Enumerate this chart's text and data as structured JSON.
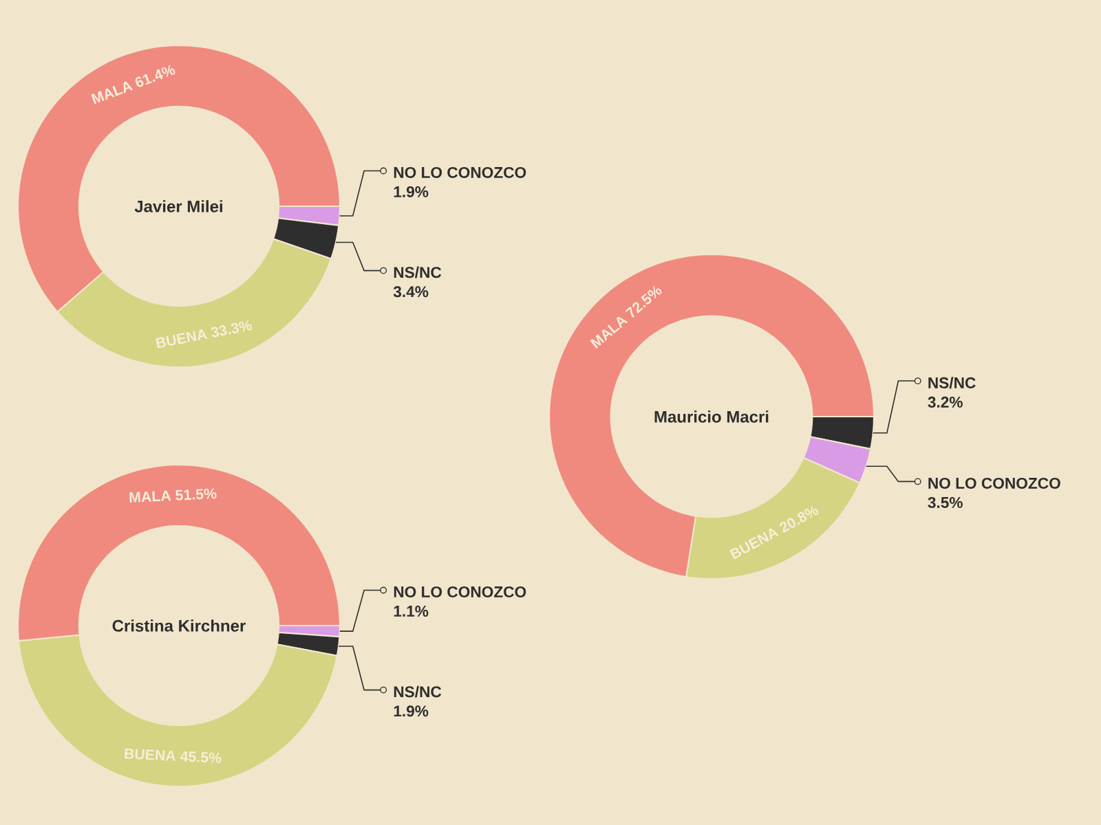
{
  "chart_data": [
    {
      "type": "donut",
      "title": "Javier Milei",
      "categories": [
        "NO LO CONOZCO",
        "NS/NC",
        "BUENA",
        "MALA"
      ],
      "values": [
        1.9,
        3.4,
        33.3,
        61.4
      ],
      "value_labels": [
        "1.9%",
        "3.4%",
        "33.3%",
        "61.4%"
      ],
      "colors": [
        "#d99be6",
        "#2e2e2e",
        "#d4d482",
        "#f08a7e"
      ]
    },
    {
      "type": "donut",
      "title": "Mauricio Macri",
      "categories": [
        "NS/NC",
        "NO LO CONOZCO",
        "BUENA",
        "MALA"
      ],
      "values": [
        3.2,
        3.5,
        20.8,
        72.5
      ],
      "value_labels": [
        "3.2%",
        "3.5%",
        "20.8%",
        "72.5%"
      ],
      "colors": [
        "#2e2e2e",
        "#d99be6",
        "#d4d482",
        "#f08a7e"
      ]
    },
    {
      "type": "donut",
      "title": "Cristina Kirchner",
      "categories": [
        "NO LO CONOZCO",
        "NS/NC",
        "BUENA",
        "MALA"
      ],
      "values": [
        1.1,
        1.9,
        45.5,
        51.5
      ],
      "value_labels": [
        "1.1%",
        "1.9%",
        "45.5%",
        "51.5%"
      ],
      "colors": [
        "#d99be6",
        "#2e2e2e",
        "#d4d482",
        "#f08a7e"
      ]
    }
  ]
}
